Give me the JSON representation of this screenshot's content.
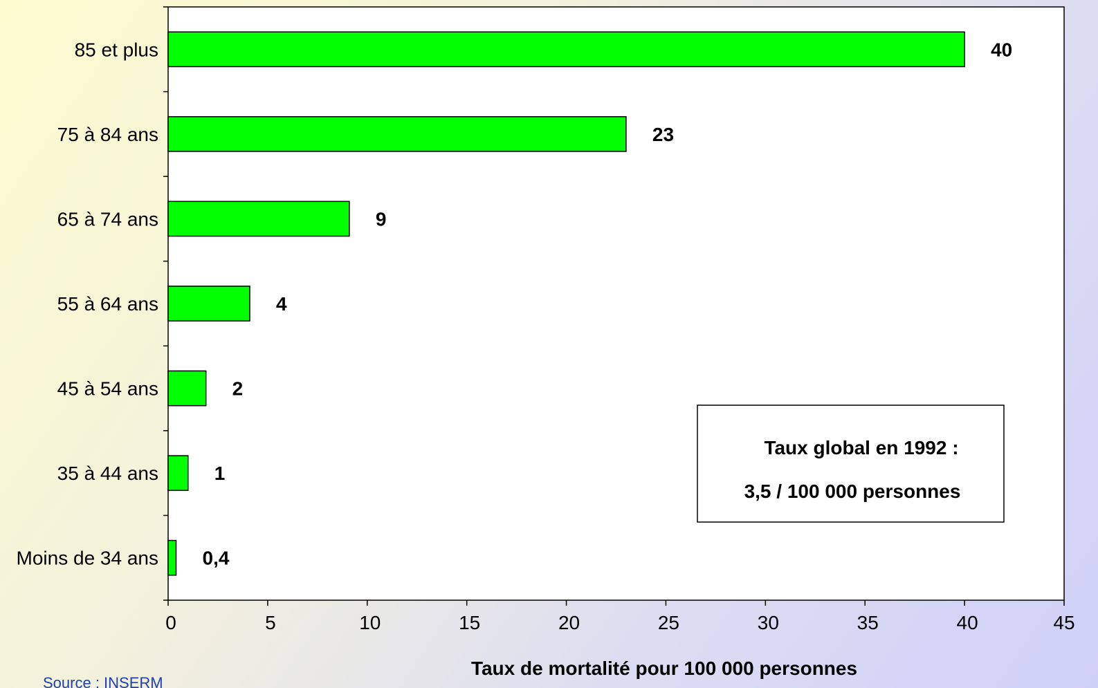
{
  "chart_data": {
    "type": "bar",
    "orientation": "horizontal",
    "categories": [
      "85 et plus",
      "75 à 84 ans",
      "65 à 74 ans",
      "55 à 64 ans",
      "45 à 54 ans",
      "35 à 44 ans",
      "Moins de 34 ans"
    ],
    "values": [
      40,
      23,
      9.1,
      4.1,
      1.9,
      1,
      0.4
    ],
    "value_labels": [
      "40",
      "23",
      "9",
      "4",
      "2",
      "1",
      "0,4"
    ],
    "xlabel": "Taux de mortalité pour 100 000 personnes",
    "xlim": [
      0,
      45
    ],
    "xticks": [
      0,
      5,
      10,
      15,
      20,
      25,
      30,
      35,
      40,
      45
    ],
    "grid": false,
    "bar_color": "#00ff00",
    "annotation": {
      "line1": "Taux global en 1992 :",
      "line2": "3,5 / 100 000 personnes"
    }
  },
  "source": "Source : INSERM"
}
